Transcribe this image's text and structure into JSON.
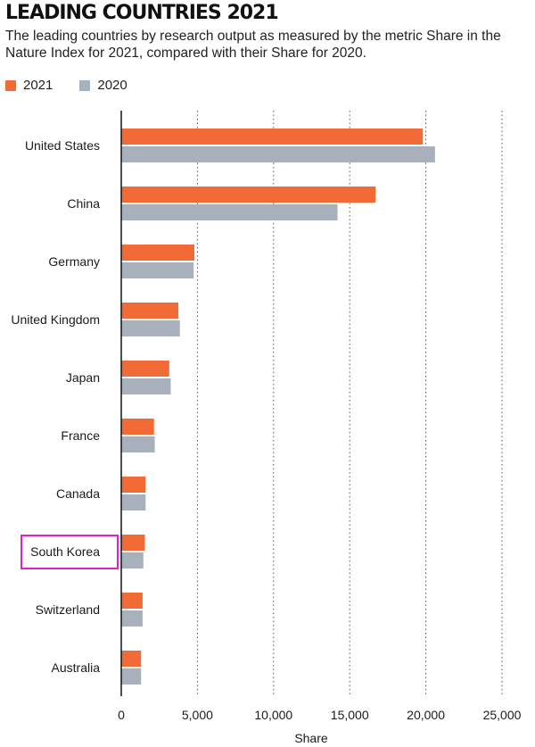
{
  "chart_data": {
    "type": "bar",
    "orientation": "horizontal",
    "title": "LEADING COUNTRIES 2021",
    "subtitle": "The leading countries by research output as measured by the metric Share in the Nature Index for 2021, compared with their Share for 2020.",
    "categories": [
      "United States",
      "China",
      "Germany",
      "United Kingdom",
      "Japan",
      "France",
      "Canada",
      "South Korea",
      "Switzerland",
      "Australia"
    ],
    "series": [
      {
        "name": "2021",
        "color": "#f26a35",
        "values": [
          19800,
          16700,
          4800,
          3750,
          3150,
          2150,
          1600,
          1550,
          1400,
          1300
        ]
      },
      {
        "name": "2020",
        "color": "#a8b0bc",
        "values": [
          20600,
          14200,
          4750,
          3850,
          3250,
          2200,
          1600,
          1450,
          1400,
          1300
        ]
      }
    ],
    "xlabel": "Share",
    "ylabel": "",
    "xlim": [
      0,
      25000
    ],
    "ticks": [
      0,
      5000,
      10000,
      15000,
      20000,
      25000
    ],
    "tick_labels": [
      "0",
      "5,000",
      "10,000",
      "15,000",
      "20,000",
      "25,000"
    ],
    "grid": true,
    "legend": "top-left",
    "highlighted_category": "South Korea",
    "highlight_color": "#e020d0"
  }
}
